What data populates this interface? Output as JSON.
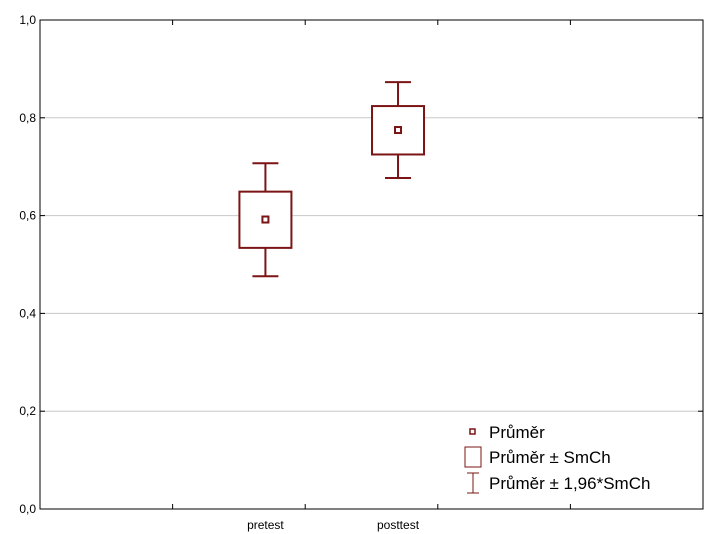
{
  "chart_data": {
    "type": "box",
    "title": "",
    "xlabel": "",
    "ylabel": "",
    "categories": [
      "pretest",
      "posttest"
    ],
    "ylim": [
      0.0,
      1.0
    ],
    "yticks": [
      {
        "value": 0.0,
        "label": "0,0"
      },
      {
        "value": 0.2,
        "label": "0,2"
      },
      {
        "value": 0.4,
        "label": "0,4"
      },
      {
        "value": 0.6,
        "label": "0,6"
      },
      {
        "value": 0.8,
        "label": "0,8"
      },
      {
        "value": 1.0,
        "label": "1,0"
      }
    ],
    "grid": true,
    "legend_position": "bottom-right",
    "color": "#7b1414",
    "boxes": [
      {
        "category": "pretest",
        "mean": 0.592,
        "mean_minus_se": 0.534,
        "mean_plus_se": 0.649,
        "mean_minus_ci": 0.476,
        "mean_plus_ci": 0.707
      },
      {
        "category": "posttest",
        "mean": 0.775,
        "mean_minus_se": 0.725,
        "mean_plus_se": 0.824,
        "mean_minus_ci": 0.677,
        "mean_plus_ci": 0.873
      }
    ],
    "legend": [
      {
        "symbol": "point",
        "label": "Průměr"
      },
      {
        "symbol": "box",
        "label": "Průměr ± SmCh"
      },
      {
        "symbol": "whisker",
        "label": "Průměr ± 1,96*SmCh"
      }
    ]
  }
}
